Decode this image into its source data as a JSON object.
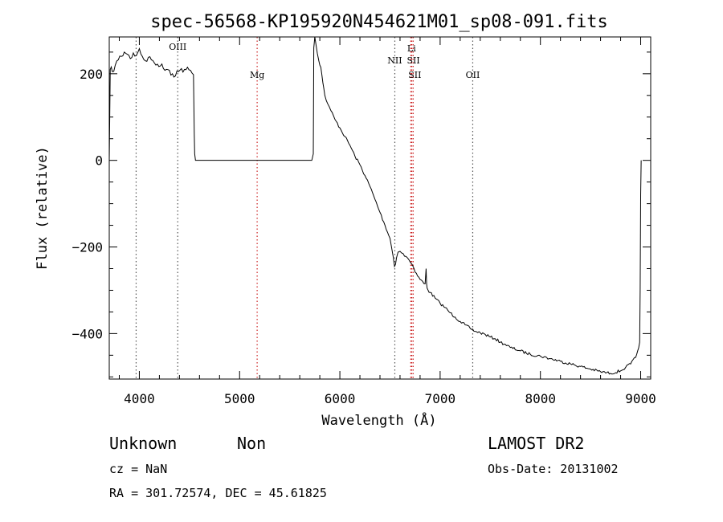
{
  "chart_data": {
    "type": "line",
    "title": "spec-56568-KP195920N454621M01_sp08-091.fits",
    "xlabel": "Wavelength (Å)",
    "ylabel": "Flux (relative)",
    "xlim": [
      3700,
      9100
    ],
    "ylim": [
      -505,
      285
    ],
    "x_ticks": [
      4000,
      5000,
      6000,
      7000,
      8000,
      9000
    ],
    "y_ticks": [
      200,
      0,
      -200,
      -400
    ],
    "grid": false,
    "series": [
      {
        "x": [
          3700,
          3710,
          3730,
          3760,
          3790,
          3820,
          3850,
          3880,
          3910,
          3940,
          3970,
          4000,
          4030,
          4060,
          4090,
          4120,
          4150,
          4180,
          4210,
          4240,
          4270,
          4300,
          4330,
          4360,
          4390,
          4420,
          4450,
          4480,
          4510,
          4540,
          4548,
          4552,
          4560,
          4600,
          5000,
          5400,
          5720,
          5735,
          5740,
          5750,
          5760,
          5790,
          5810,
          5830,
          5850,
          5880,
          5910,
          5950,
          6000,
          6050,
          6100,
          6150,
          6200,
          6250,
          6300,
          6350,
          6400,
          6450,
          6500,
          6530,
          6545,
          6555,
          6565,
          6580,
          6600,
          6630,
          6660,
          6690,
          6720,
          6730,
          6740,
          6750,
          6800,
          6850,
          6860,
          6865,
          6870,
          6880,
          6900,
          6950,
          7000,
          7050,
          7100,
          7150,
          7200,
          7250,
          7300,
          7350,
          7400,
          7450,
          7500,
          7550,
          7600,
          7650,
          7700,
          7800,
          7900,
          8000,
          8100,
          8200,
          8300,
          8400,
          8500,
          8600,
          8700,
          8800,
          8850,
          8900,
          8950,
          8970,
          8990,
          8995,
          9000,
          9005
        ],
        "y": [
          0,
          210,
          205,
          220,
          232,
          240,
          250,
          245,
          235,
          248,
          242,
          258,
          240,
          230,
          238,
          232,
          225,
          222,
          218,
          212,
          210,
          208,
          200,
          195,
          205,
          212,
          210,
          215,
          208,
          198,
          60,
          15,
          0,
          0,
          0,
          0,
          0,
          15,
          260,
          285,
          270,
          230,
          215,
          180,
          150,
          130,
          115,
          95,
          75,
          55,
          35,
          10,
          -10,
          -35,
          -60,
          -90,
          -120,
          -150,
          -180,
          -220,
          -245,
          -240,
          -225,
          -212,
          -210,
          -215,
          -222,
          -230,
          -240,
          -245,
          -250,
          -258,
          -275,
          -285,
          -250,
          -285,
          -295,
          -300,
          -305,
          -318,
          -330,
          -340,
          -352,
          -362,
          -372,
          -380,
          -388,
          -395,
          -398,
          -402,
          -408,
          -412,
          -420,
          -425,
          -432,
          -440,
          -448,
          -452,
          -458,
          -464,
          -470,
          -476,
          -482,
          -488,
          -492,
          -486,
          -478,
          -470,
          -455,
          -440,
          -420,
          -300,
          -80,
          0
        ]
      }
    ],
    "markers": [
      {
        "x": 3968,
        "label": "",
        "color": "#555555"
      },
      {
        "x": 4383,
        "label": "OIII",
        "color": "#555555"
      },
      {
        "x": 5175,
        "label": "Mg",
        "color": "#cc2222"
      },
      {
        "x": 6548,
        "label": "NII",
        "color": "#555555"
      },
      {
        "x": 6707,
        "label": "Li",
        "color": "#cc2222"
      },
      {
        "x": 6717,
        "label": "SII",
        "color": "#cc2222"
      },
      {
        "x": 6731,
        "label": "SII",
        "color": "#cc2222"
      },
      {
        "x": 7325,
        "label": "OII",
        "color": "#555555"
      }
    ]
  },
  "footer": {
    "class": "Unknown",
    "subclass": "Non",
    "survey": "LAMOST DR2",
    "cz": "cz = NaN",
    "obs_date": "Obs-Date: 20131002",
    "coords": "RA = 301.72574, DEC =  45.61825"
  }
}
